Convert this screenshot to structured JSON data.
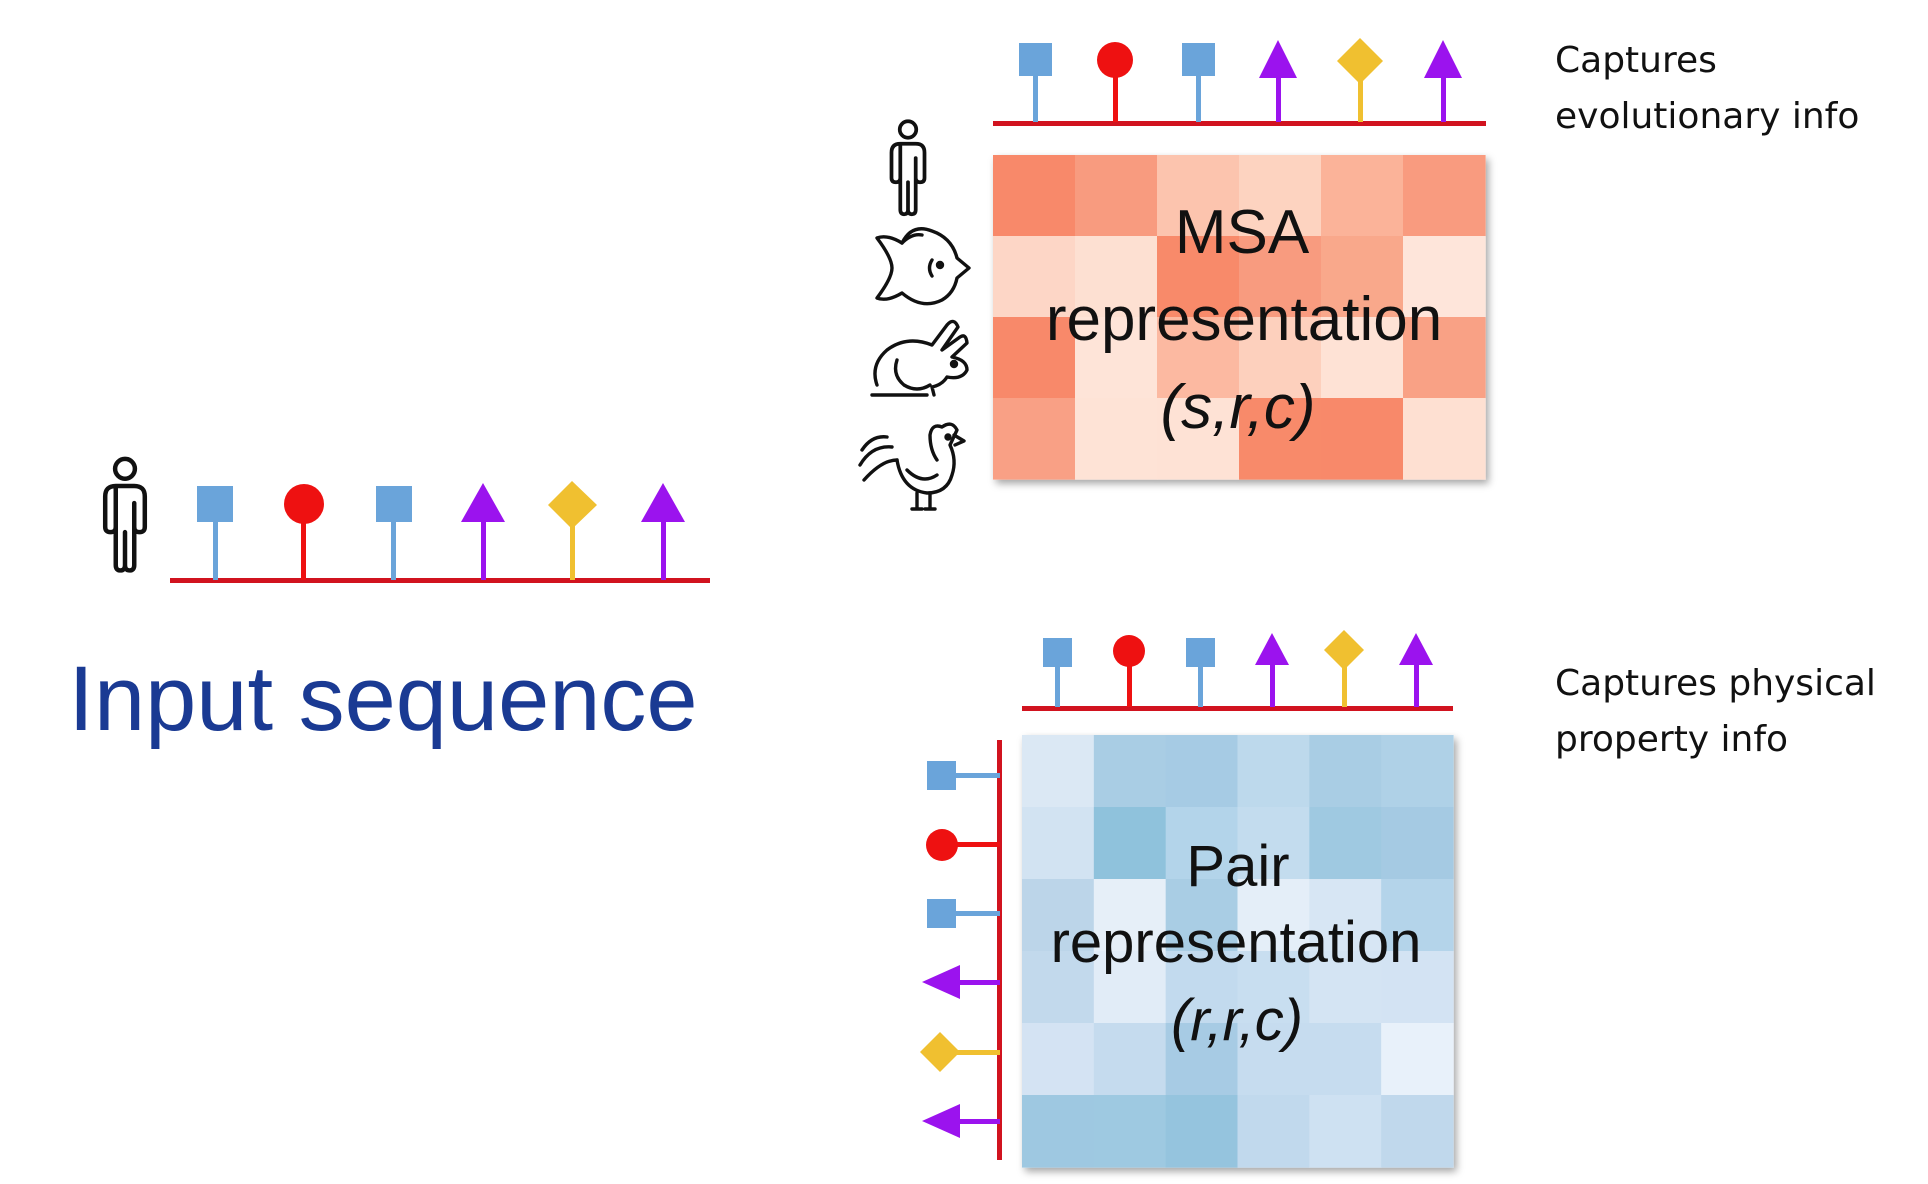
{
  "input": {
    "title": "Input sequence",
    "residues": [
      "square",
      "circle",
      "square",
      "arrow",
      "diamond",
      "arrow"
    ]
  },
  "colors": {
    "backbone": "#d1131f",
    "square": "#6aa4da",
    "circle": "#ee1111",
    "arrow": "#9b13ee",
    "diamond": "#f0c030",
    "title": "#1a3a93",
    "figure": "#111111"
  },
  "msa": {
    "label_line1": "MSA",
    "label_line2": "representation",
    "label_dims": "(s,r,c)",
    "note_line1": "Captures",
    "note_line2": "evolutionary info",
    "species": [
      "human-icon",
      "fish-icon",
      "rabbit-icon",
      "rooster-icon"
    ],
    "grid_colors": [
      [
        "#f8896b",
        "#f89b7f",
        "#fcc4ae",
        "#fdd3c0",
        "#fbb399",
        "#f99b7f"
      ],
      [
        "#fdd6c6",
        "#fde0d2",
        "#f88a6b",
        "#f89b7f",
        "#f9a88b",
        "#fee5da"
      ],
      [
        "#f8896b",
        "#fee4d8",
        "#fcb9a1",
        "#fdd0bd",
        "#fee2d5",
        "#f9a185"
      ],
      [
        "#f9a085",
        "#fee3d6",
        "#fee2d5",
        "#f88a6b",
        "#f8896b",
        "#fee0d2"
      ]
    ]
  },
  "pair": {
    "label_line1": "Pair",
    "label_line2": "representation",
    "label_dims": "(r,r,c)",
    "note_line1": "Captures physical",
    "note_line2": "property info",
    "grid_colors": [
      [
        "#dbe8f4",
        "#a9cde4",
        "#a6cbe4",
        "#bdd9ec",
        "#a9cde4",
        "#afd1e7"
      ],
      [
        "#d2e3f2",
        "#8fc2dc",
        "#b3d4ea",
        "#c3dcee",
        "#9fc9e1",
        "#a5cae3"
      ],
      [
        "#bcd5e9",
        "#e6eff8",
        "#a9cde4",
        "#e4eef8",
        "#d7e6f4",
        "#b4d4ea"
      ],
      [
        "#c2d9ec",
        "#e1ecf7",
        "#c2daee",
        "#c8def0",
        "#d4e4f3",
        "#d3e3f3"
      ],
      [
        "#d4e3f3",
        "#c5dbee",
        "#a7cbe4",
        "#c6dcef",
        "#c6dcef",
        "#e8f1fa"
      ],
      [
        "#9ec8e1",
        "#9ec9e1",
        "#95c4de",
        "#c1d9ed",
        "#cee1f2",
        "#c0d8ec"
      ]
    ]
  }
}
